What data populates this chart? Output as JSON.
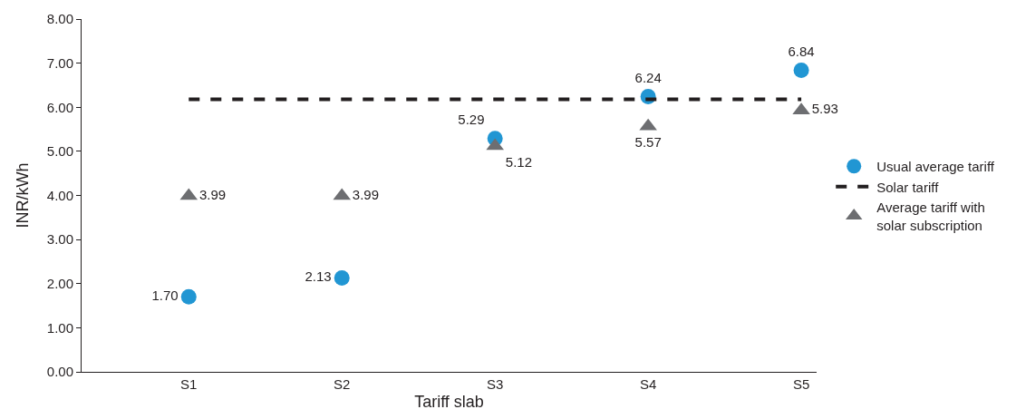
{
  "chart_data": {
    "type": "scatter",
    "xlabel": "Tariff slab",
    "ylabel": "INR/kWh",
    "categories": [
      "S1",
      "S2",
      "S3",
      "S4",
      "S5"
    ],
    "series": [
      {
        "name": "Usual average tariff",
        "marker": "circle",
        "color": "#2196d3",
        "values": [
          1.7,
          2.13,
          5.29,
          6.24,
          6.84
        ],
        "value_labels": [
          "1.70",
          "2.13",
          "5.29",
          "6.24",
          "6.84"
        ]
      },
      {
        "name": "Solar tariff",
        "type": "line",
        "marker": "none",
        "line_style": "dashed",
        "color": "#231f20",
        "values": [
          6.18,
          6.18,
          6.18,
          6.18,
          6.18
        ]
      },
      {
        "name": "Average tariff with solar subscription",
        "marker": "triangle",
        "color": "#6d6e71",
        "values": [
          3.99,
          3.99,
          5.12,
          5.57,
          5.93
        ],
        "value_labels": [
          "3.99",
          "3.99",
          "5.12",
          "5.57",
          "5.93"
        ]
      }
    ],
    "ylim": [
      0,
      8
    ],
    "yticks": [
      {
        "value": 0,
        "label": "0.00"
      },
      {
        "value": 1,
        "label": "1.00"
      },
      {
        "value": 2,
        "label": "2.00"
      },
      {
        "value": 3,
        "label": "3.00"
      },
      {
        "value": 4,
        "label": "4.00"
      },
      {
        "value": 5,
        "label": "5.00"
      },
      {
        "value": 6,
        "label": "6.00"
      },
      {
        "value": 7,
        "label": "7.00"
      },
      {
        "value": 8,
        "label": "8.00"
      }
    ],
    "legend": "right"
  }
}
